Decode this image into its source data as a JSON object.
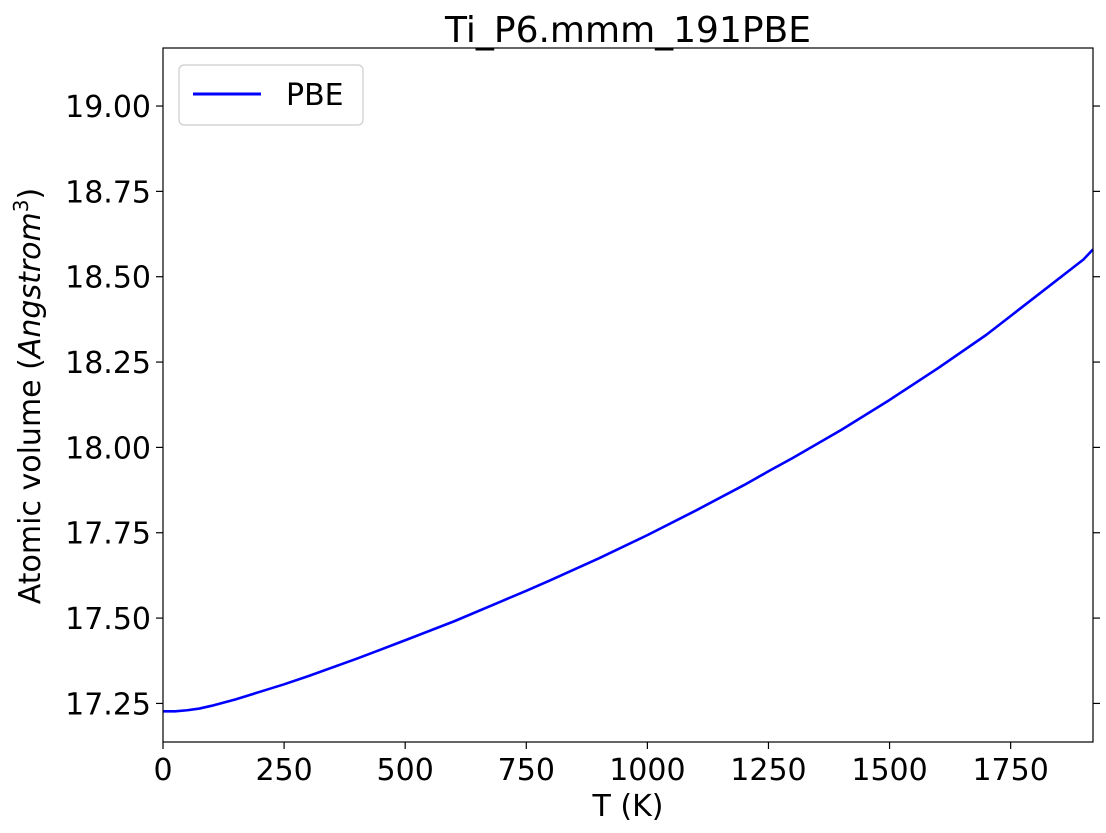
{
  "chart_data": {
    "type": "line",
    "title": "Ti_P6.mmm_191PBE",
    "xlabel": "T (K)",
    "ylabel_prefix": "Atomic volume (",
    "ylabel_unit": "Angstrom",
    "ylabel_sup": "3",
    "ylabel_suffix": ")",
    "xlim": [
      0,
      1920
    ],
    "ylim": [
      17.137,
      19.17
    ],
    "xticks": [
      0,
      250,
      500,
      750,
      1000,
      1250,
      1500,
      1750
    ],
    "xtick_labels": [
      "0",
      "250",
      "500",
      "750",
      "1000",
      "1250",
      "1500",
      "1750"
    ],
    "yticks": [
      17.25,
      17.5,
      17.75,
      18.0,
      18.25,
      18.5,
      18.75,
      19.0
    ],
    "ytick_labels": [
      "17.25",
      "17.50",
      "17.75",
      "18.00",
      "18.25",
      "18.50",
      "18.75",
      "19.00"
    ],
    "grid": false,
    "legend_position": "top-left",
    "series": [
      {
        "name": "PBE",
        "color": "#0000ff",
        "x": [
          0,
          25,
          50,
          75,
          100,
          150,
          200,
          250,
          300,
          400,
          500,
          600,
          700,
          750,
          800,
          900,
          1000,
          1100,
          1200,
          1250,
          1300,
          1400,
          1500,
          1600,
          1700,
          1750,
          1800,
          1900,
          1920
        ],
        "y": [
          17.227,
          17.227,
          17.23,
          17.235,
          17.243,
          17.262,
          17.284,
          17.306,
          17.33,
          17.381,
          17.435,
          17.49,
          17.55,
          17.58,
          17.611,
          17.675,
          17.743,
          17.815,
          17.89,
          17.93,
          17.969,
          18.051,
          18.139,
          18.232,
          18.33,
          18.385,
          18.44,
          18.55,
          18.58
        ]
      }
    ]
  }
}
